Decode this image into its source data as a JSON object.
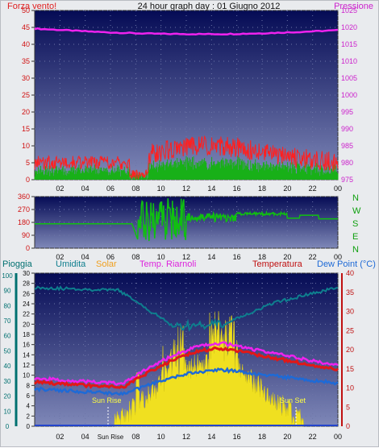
{
  "header": {
    "title": "24 hour graph day : 01 Giugno 2012",
    "left_label": "Forza vento!",
    "right_label": "Pressione"
  },
  "top_panel": {
    "left_ticks": [
      "0",
      "5",
      "10",
      "15",
      "20",
      "25",
      "30",
      "35",
      "40",
      "45",
      "50"
    ],
    "right_ticks": [
      "975",
      "980",
      "985",
      "990",
      "995",
      "1000",
      "1005",
      "1010",
      "1015",
      "1020",
      "1025"
    ],
    "x_ticks": [
      "02",
      "04",
      "06",
      "08",
      "10",
      "12",
      "14",
      "16",
      "18",
      "20",
      "22",
      "00"
    ]
  },
  "direction_panel": {
    "left_ticks": [
      "0",
      "90",
      "180",
      "270",
      "360"
    ],
    "compass": [
      "N",
      "W",
      "S",
      "E",
      "N"
    ],
    "x_ticks": [
      "02",
      "04",
      "06",
      "08",
      "10",
      "12",
      "14",
      "16",
      "18",
      "20",
      "22",
      "00"
    ]
  },
  "bottom_panel": {
    "labels": {
      "rain": "Pioggia",
      "humidity": "Umidita",
      "solar": "Solar",
      "apparent": "Temp. Riarnoli",
      "temperature": "Temperatura",
      "dewpoint": "Dew Point (°C)"
    },
    "rain_ticks": [
      "0",
      "10",
      "20",
      "30",
      "40",
      "50",
      "60",
      "70",
      "80",
      "90",
      "100"
    ],
    "humidity_ticks": [
      "0",
      "2",
      "4",
      "6",
      "8",
      "10",
      "12",
      "14",
      "16",
      "18",
      "20",
      "22",
      "24",
      "26",
      "28",
      "30"
    ],
    "temp_ticks": [
      "0",
      "5",
      "10",
      "15",
      "20",
      "25",
      "30",
      "35",
      "40"
    ],
    "x_ticks": [
      "02",
      "04",
      "Sun Rise",
      "08",
      "10",
      "12",
      "14",
      "16",
      "18",
      "20",
      "22",
      "00"
    ],
    "sunrise": "Sun Rise",
    "sunset": "Sun Set"
  },
  "colors": {
    "panel_top": "#050b55",
    "panel_bottom": "#7f88b8",
    "wind": "#ff2020",
    "gust": "#18b018",
    "pressure": "#ee22ee",
    "direction": "#10c010",
    "humidity": "#0e7e8e",
    "solar": "#f0e020",
    "apparent": "#ee22ee",
    "temperature": "#e01818",
    "dewpoint": "#1e6ad6",
    "rain_axis": "#007070",
    "temp_axis": "#c01010"
  }
}
